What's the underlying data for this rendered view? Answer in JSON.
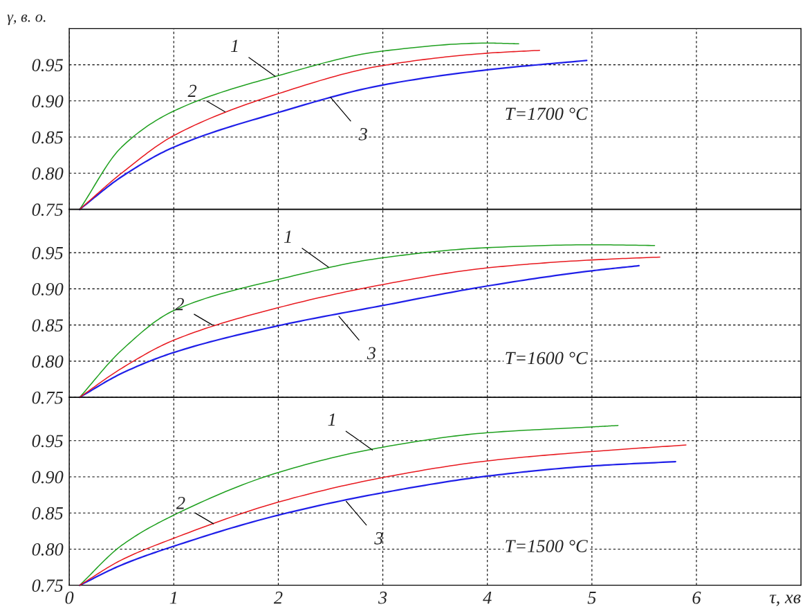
{
  "chart_data": [
    {
      "type": "line",
      "ylabel": "γ, в. о.",
      "xlim": [
        0,
        7
      ],
      "xticks": [
        0,
        1,
        2,
        3,
        4,
        5,
        6
      ],
      "ylim": [
        0.75,
        1.0
      ],
      "yticks": [
        0.75,
        {
          "value": 0.8,
          "label": "0.80"
        },
        0.85,
        {
          "value": 0.9,
          "label": "0.90"
        },
        0.95,
        {
          "value": 1.0,
          "label": null
        }
      ],
      "grid": true,
      "tick_labels": "y",
      "legend": false,
      "marker": "none",
      "line_style": "solid",
      "series": [
        {
          "color": "#1fa01f",
          "x": [
            0.1,
            0.5,
            1,
            2,
            3,
            4,
            4.3
          ],
          "values": [
            0.75,
            0.836,
            0.886,
            0.935,
            0.969,
            0.98,
            0.979
          ]
        },
        {
          "color": "#e8191f",
          "x": [
            0.1,
            0.5,
            1,
            2,
            3,
            4,
            4.5
          ],
          "values": [
            0.75,
            0.8,
            0.852,
            0.91,
            0.949,
            0.966,
            0.97
          ]
        },
        {
          "color": "#1f1fe8",
          "x": [
            0.1,
            0.5,
            1,
            2,
            3,
            4,
            4.95
          ],
          "values": [
            0.75,
            0.795,
            0.836,
            0.884,
            0.922,
            0.943,
            0.956
          ]
        }
      ],
      "annotations": [
        {
          "text": "1",
          "x": 1.97,
          "y": 0.934
        },
        {
          "text": "2",
          "x": 1.49,
          "y": 0.885
        },
        {
          "text": "3",
          "x": 2.5,
          "y": 0.905
        },
        "T=1700 °C"
      ]
    },
    {
      "type": "line",
      "xlim": [
        0,
        7
      ],
      "xticks": [
        0,
        1,
        2,
        3,
        4,
        5,
        6
      ],
      "ylim": [
        0.75,
        1.01
      ],
      "yticks": [
        0.75,
        {
          "value": 0.8,
          "label": "0.80"
        },
        0.85,
        {
          "value": 0.9,
          "label": "0.90"
        },
        0.95
      ],
      "grid": true,
      "tick_labels": "y",
      "legend": false,
      "marker": "none",
      "line_style": "solid",
      "series": [
        {
          "color": "#1fa01f",
          "x": [
            0.1,
            0.5,
            1,
            2,
            3,
            4,
            5,
            5.6
          ],
          "values": [
            0.75,
            0.815,
            0.87,
            0.913,
            0.943,
            0.957,
            0.961,
            0.96
          ]
        },
        {
          "color": "#e8191f",
          "x": [
            0.1,
            0.5,
            1,
            2,
            3,
            4,
            5,
            5.65
          ],
          "values": [
            0.75,
            0.79,
            0.829,
            0.874,
            0.906,
            0.929,
            0.94,
            0.944
          ]
        },
        {
          "color": "#1f1fe8",
          "x": [
            0.1,
            0.5,
            1,
            2,
            3,
            4,
            5,
            5.45
          ],
          "values": [
            0.75,
            0.783,
            0.812,
            0.849,
            0.877,
            0.904,
            0.925,
            0.932
          ]
        }
      ],
      "annotations": [
        {
          "text": "1",
          "x": 2.48,
          "y": 0.93
        },
        {
          "text": "2",
          "x": 1.37,
          "y": 0.85
        },
        {
          "text": "3",
          "x": 2.58,
          "y": 0.862
        },
        "T=1600 °C"
      ]
    },
    {
      "type": "line",
      "xlabel": "τ, хв",
      "xlim": [
        0,
        7
      ],
      "xticks": [
        0,
        1,
        2,
        3,
        4,
        5,
        6
      ],
      "ylim": [
        0.75,
        1.01
      ],
      "yticks": [
        0.75,
        {
          "value": 0.8,
          "label": "0.80"
        },
        0.85,
        {
          "value": 0.9,
          "label": "0.90"
        },
        0.95
      ],
      "grid": true,
      "legend": false,
      "marker": "none",
      "line_style": "solid",
      "series": [
        {
          "color": "#1fa01f",
          "x": [
            0.1,
            0.5,
            1,
            2,
            3,
            4,
            5,
            5.25
          ],
          "values": [
            0.75,
            0.805,
            0.847,
            0.906,
            0.941,
            0.961,
            0.969,
            0.971
          ]
        },
        {
          "color": "#e8191f",
          "x": [
            0.1,
            0.5,
            1,
            2,
            3,
            4,
            5,
            5.9
          ],
          "values": [
            0.75,
            0.785,
            0.815,
            0.865,
            0.899,
            0.922,
            0.935,
            0.944
          ]
        },
        {
          "color": "#1f1fe8",
          "x": [
            0.1,
            0.5,
            1,
            2,
            3,
            4,
            5,
            5.8
          ],
          "values": [
            0.75,
            0.778,
            0.804,
            0.847,
            0.878,
            0.901,
            0.915,
            0.921
          ]
        }
      ],
      "annotations": [
        {
          "text": "1",
          "x": 2.9,
          "y": 0.937
        },
        {
          "text": "2",
          "x": 1.38,
          "y": 0.835
        },
        {
          "text": "3",
          "x": 2.65,
          "y": 0.866
        },
        "T=1500 °C"
      ]
    }
  ]
}
